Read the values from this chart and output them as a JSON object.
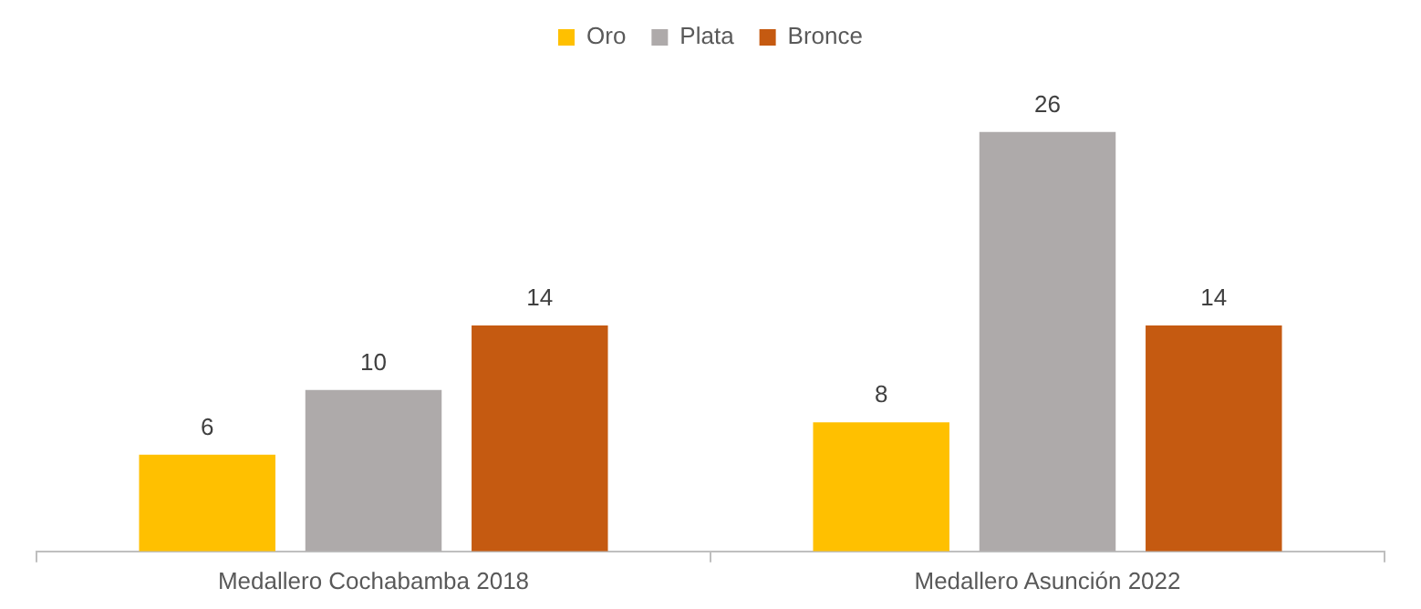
{
  "chart_data": {
    "type": "bar",
    "categories": [
      "Medallero Cochabamba 2018",
      "Medallero Asunción 2022"
    ],
    "series": [
      {
        "name": "Oro",
        "color": "#ffc000",
        "values": [
          6,
          8
        ]
      },
      {
        "name": "Plata",
        "color": "#aeaaaa",
        "values": [
          10,
          26
        ]
      },
      {
        "name": "Bronce",
        "color": "#c55a11",
        "values": [
          14,
          14
        ]
      }
    ],
    "data_labels": true,
    "legend": "top",
    "grid": false,
    "tick_labels": "x"
  }
}
